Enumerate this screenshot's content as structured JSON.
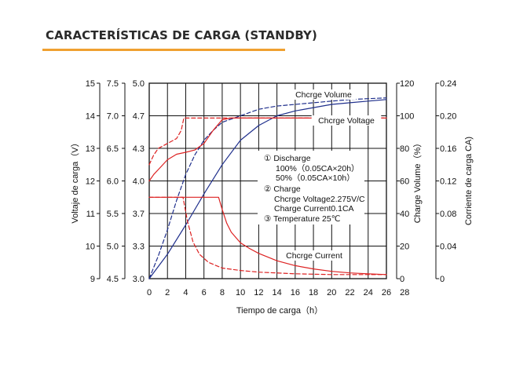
{
  "page": {
    "title": "CARACTERÍSTICAS DE CARGA (STANDBY)",
    "accent_color": "#f0a030"
  },
  "chart_data": {
    "type": "line",
    "xlabel": "Tiempo de carga（h）",
    "x_ticks": [
      0,
      2,
      4,
      6,
      8,
      10,
      12,
      14,
      16,
      18,
      20,
      22,
      24,
      26,
      28
    ],
    "xlim": [
      0,
      26
    ],
    "grid": true,
    "left_axes": [
      {
        "label": "Voltaje de carga（V）",
        "ticks": [
          9,
          10,
          11,
          12,
          13,
          14,
          15
        ]
      },
      {
        "label": "",
        "ticks": [
          "4.5",
          "5.0",
          "5.5",
          "6.0",
          "6.5",
          "7.0",
          "7.5"
        ]
      },
      {
        "label": "",
        "ticks": [
          "3.0",
          "3.3",
          "3.7",
          "4.0",
          "4.3",
          "4.7",
          "5.0"
        ]
      }
    ],
    "right_axes": [
      {
        "label": "Charge Volume（%）",
        "ticks": [
          0,
          20,
          40,
          60,
          80,
          100,
          120
        ]
      },
      {
        "label": "Corriente de carga CA)",
        "ticks": [
          "0",
          "0.04",
          "0.08",
          "0.12",
          "0.16",
          "0.20",
          "0.24"
        ]
      }
    ],
    "series": [
      {
        "name": "Chcrge Volume",
        "style": "solid",
        "color": "#1f2f8c",
        "points": [
          [
            0,
            0
          ],
          [
            2,
            15
          ],
          [
            4,
            33
          ],
          [
            6,
            52
          ],
          [
            8,
            70
          ],
          [
            10,
            85
          ],
          [
            12,
            94
          ],
          [
            14,
            100
          ],
          [
            16,
            103
          ],
          [
            18,
            105
          ],
          [
            20,
            107
          ],
          [
            22,
            108
          ],
          [
            24,
            109
          ],
          [
            26,
            110
          ]
        ]
      },
      {
        "name": "",
        "style": "dashed",
        "color": "#1f2f8c",
        "points": [
          [
            0,
            0
          ],
          [
            1,
            14
          ],
          [
            2,
            30
          ],
          [
            3,
            48
          ],
          [
            4,
            64
          ],
          [
            5,
            76
          ],
          [
            6,
            85
          ],
          [
            7,
            91
          ],
          [
            8,
            96
          ],
          [
            10,
            100
          ],
          [
            12,
            104
          ],
          [
            14,
            106
          ],
          [
            16,
            107
          ],
          [
            18,
            108
          ],
          [
            20,
            109
          ],
          [
            22,
            110
          ],
          [
            24,
            110.5
          ],
          [
            26,
            111
          ]
        ]
      },
      {
        "name": "Chcrge Voltage",
        "style": "solid",
        "color": "#dd2222",
        "points": [
          [
            0,
            12.0
          ],
          [
            0.5,
            12.2
          ],
          [
            1,
            12.35
          ],
          [
            2,
            12.65
          ],
          [
            3,
            12.82
          ],
          [
            4,
            12.88
          ],
          [
            5,
            12.95
          ],
          [
            6,
            13.15
          ],
          [
            7,
            13.55
          ],
          [
            8,
            13.88
          ],
          [
            9,
            13.93
          ],
          [
            26,
            13.93
          ]
        ]
      },
      {
        "name": "",
        "style": "dashed",
        "color": "#dd2222",
        "points": [
          [
            0,
            12.5
          ],
          [
            0.5,
            12.8
          ],
          [
            1,
            13.0
          ],
          [
            2,
            13.15
          ],
          [
            3,
            13.3
          ],
          [
            3.5,
            13.55
          ],
          [
            3.8,
            13.93
          ],
          [
            26,
            13.93
          ]
        ]
      },
      {
        "name": "Chcrge Current",
        "style": "solid",
        "color": "#dd2222",
        "points": [
          [
            0,
            0.1
          ],
          [
            7.6,
            0.1
          ],
          [
            8,
            0.085
          ],
          [
            8.5,
            0.068
          ],
          [
            9,
            0.057
          ],
          [
            10,
            0.044
          ],
          [
            11,
            0.037
          ],
          [
            12,
            0.031
          ],
          [
            14,
            0.022
          ],
          [
            16,
            0.016
          ],
          [
            18,
            0.012
          ],
          [
            20,
            0.009
          ],
          [
            22,
            0.007
          ],
          [
            24,
            0.006
          ],
          [
            26,
            0.005
          ]
        ]
      },
      {
        "name": "",
        "style": "dashed",
        "color": "#dd2222",
        "points": [
          [
            0,
            0.1
          ],
          [
            3.7,
            0.1
          ],
          [
            4.2,
            0.07
          ],
          [
            4.8,
            0.045
          ],
          [
            5.5,
            0.03
          ],
          [
            6.5,
            0.02
          ],
          [
            8,
            0.013
          ],
          [
            10,
            0.01
          ],
          [
            12,
            0.008
          ],
          [
            16,
            0.006
          ],
          [
            20,
            0.005
          ],
          [
            26,
            0.005
          ]
        ]
      }
    ],
    "annotation": {
      "lines": [
        "① Discharge",
        "100%（0.05CA×20h）",
        "50%（0.05CA×10h）",
        "② Charge",
        "Chcrge Voltage2.275V/C",
        "Charge Current0.1CA",
        "③ Temperature 25℃"
      ]
    }
  }
}
